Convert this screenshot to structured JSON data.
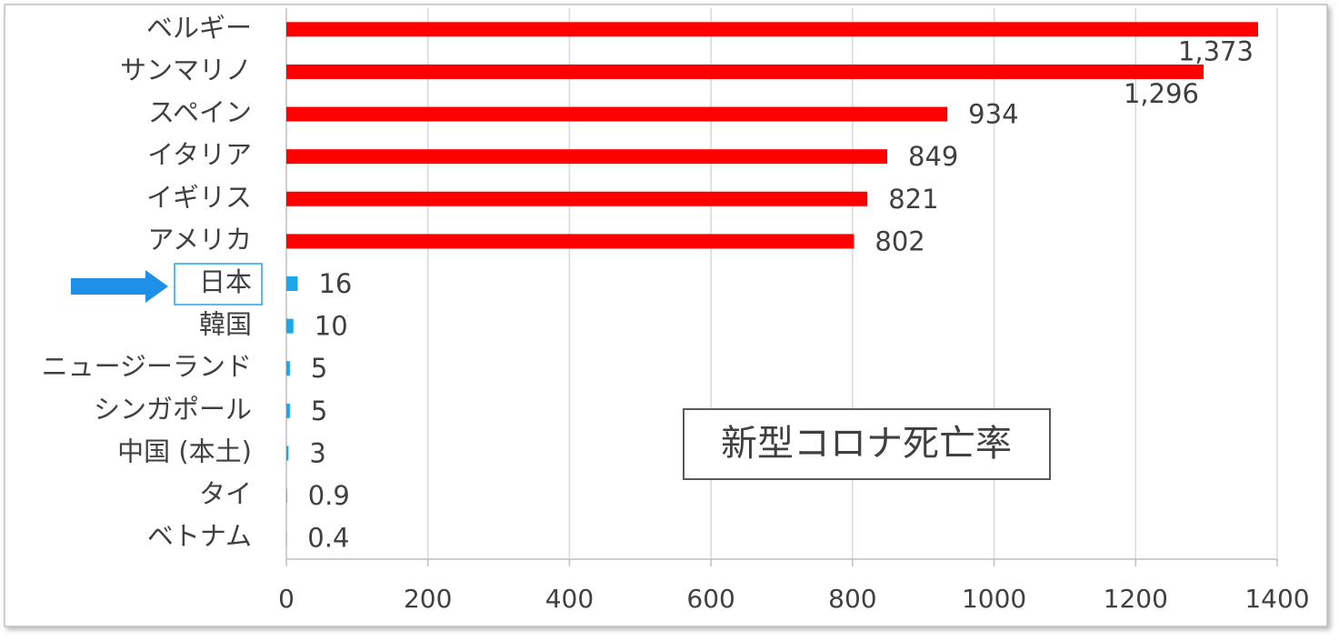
{
  "chart_data": {
    "type": "bar",
    "orientation": "horizontal",
    "title": "新型コロナ死亡率",
    "categories": [
      "ベルギー",
      "サンマリノ",
      "スペイン",
      "イタリア",
      "イギリス",
      "アメリカ",
      "日本",
      "韓国",
      "ニュージーランド",
      "シンガポール",
      "中国 (本土)",
      "タイ",
      "ベトナム"
    ],
    "values": [
      1373,
      1296,
      934,
      849,
      821,
      802,
      16,
      10,
      5,
      5,
      3,
      0.9,
      0.4
    ],
    "value_labels": [
      "1,373",
      "1,296",
      "934",
      "849",
      "821",
      "802",
      "16",
      "10",
      "5",
      "5",
      "3",
      "0.9",
      "0.4"
    ],
    "colors": [
      "#ff0000",
      "#ff0000",
      "#ff0000",
      "#ff0000",
      "#ff0000",
      "#ff0000",
      "#1ea7e8",
      "#1ea7e8",
      "#1ea7e8",
      "#1ea7e8",
      "#1ea7e8",
      "#1ea7e8",
      "#1ea7e8"
    ],
    "xlim": [
      0,
      1400
    ],
    "xticks": [
      0,
      200,
      400,
      600,
      800,
      1000,
      1200,
      1400
    ],
    "grid": true
  }
}
